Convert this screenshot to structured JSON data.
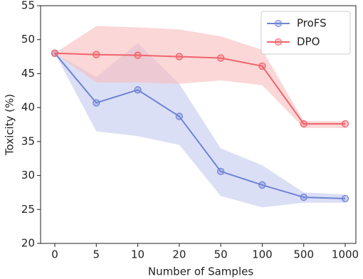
{
  "chart_data": {
    "type": "line",
    "xlabel": "Number of Samples",
    "ylabel": "Toxicity (%)",
    "categories": [
      "0",
      "5",
      "10",
      "20",
      "50",
      "100",
      "500",
      "1000"
    ],
    "ylim": [
      20,
      55
    ],
    "yticks": [
      20,
      25,
      30,
      35,
      40,
      45,
      50,
      55
    ],
    "legend": "upper right",
    "series": [
      {
        "name": "ProFS",
        "color": "#6f84d6",
        "band_color": "#c3c9ee",
        "values": [
          48,
          40.7,
          42.6,
          38.7,
          30.6,
          28.6,
          26.8,
          26.6
        ],
        "lower": [
          48,
          36.5,
          35.8,
          34.5,
          27,
          25.3,
          26,
          26
        ],
        "upper": [
          48,
          44.5,
          49.5,
          43.5,
          34,
          31.5,
          27.5,
          27.2
        ]
      },
      {
        "name": "DPO",
        "color": "#f0646c",
        "band_color": "#f9bcbc",
        "values": [
          48,
          47.8,
          47.7,
          47.5,
          47.3,
          46.1,
          37.6,
          37.6
        ],
        "lower": [
          48,
          43.7,
          43.7,
          43.5,
          44,
          43.3,
          37,
          37
        ],
        "upper": [
          48,
          52,
          51.8,
          51.5,
          50.5,
          48.5,
          38,
          38
        ]
      }
    ]
  }
}
